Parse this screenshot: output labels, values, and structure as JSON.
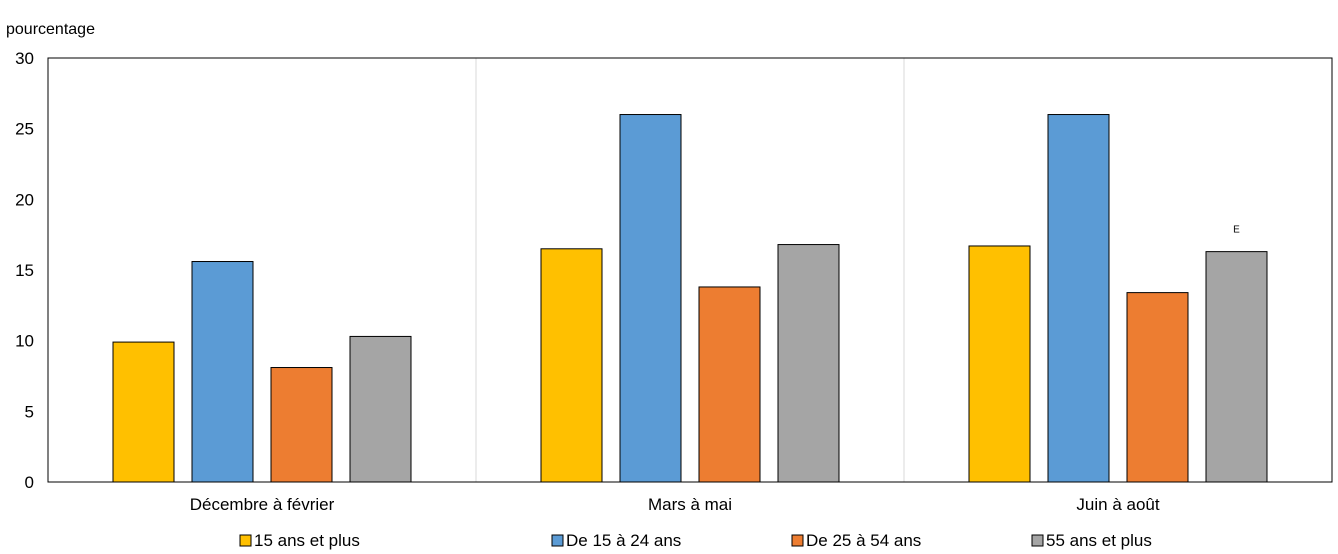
{
  "chart_data": {
    "type": "bar",
    "title": "",
    "ylabel": "pourcentage",
    "xlabel": "",
    "ylim": [
      0,
      30
    ],
    "yticks": [
      "0",
      "5",
      "10",
      "15",
      "20",
      "25",
      "30"
    ],
    "categories": [
      "Décembre à février",
      "Mars à mai",
      "Juin à août"
    ],
    "series": [
      {
        "name": "15 ans et plus",
        "color": "#FFC000",
        "values": [
          9.9,
          16.5,
          16.7
        ]
      },
      {
        "name": "De 15 à 24 ans",
        "color": "#5B9BD5",
        "values": [
          15.6,
          26.0,
          26.0
        ]
      },
      {
        "name": "De 25 à 54 ans",
        "color": "#ED7D31",
        "values": [
          8.1,
          13.8,
          13.4
        ]
      },
      {
        "name": "55 ans et plus",
        "color": "#A5A5A5",
        "values": [
          10.3,
          16.8,
          16.3
        ]
      }
    ],
    "annotations": [
      {
        "text": "E",
        "series": 3,
        "category": 2
      }
    ],
    "grid": "vertical category separators",
    "legend_position": "bottom"
  }
}
